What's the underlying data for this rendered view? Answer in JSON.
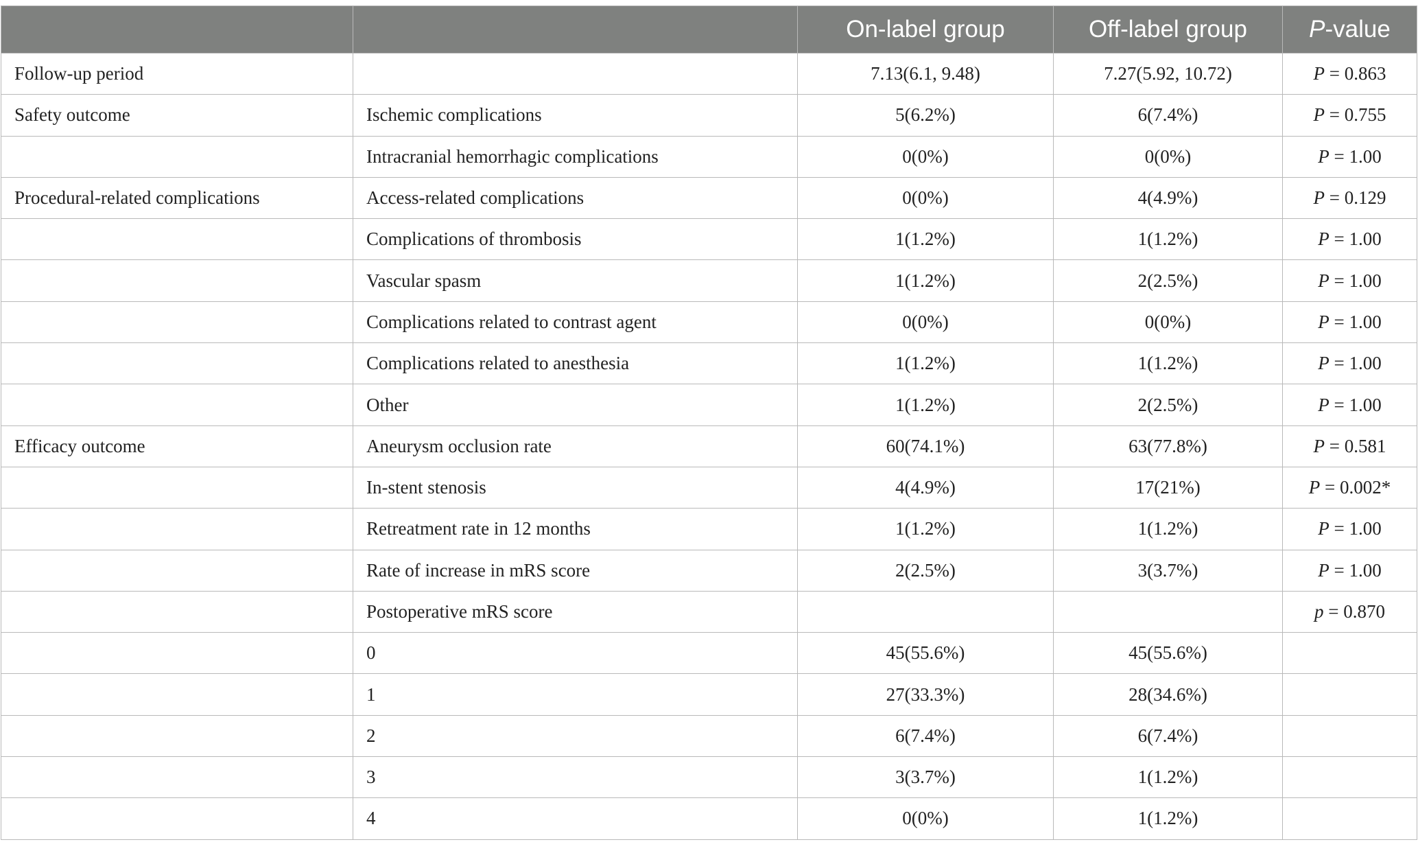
{
  "header": {
    "col0": "",
    "col1": "",
    "on_label": "On-label group",
    "off_label": "Off-label group",
    "p_italic": "P",
    "p_rest": "-value"
  },
  "rows": [
    {
      "outcome": "Follow-up period",
      "item": "",
      "on": "7.13(6.1, 9.48)",
      "off": "7.27(5.92, 10.72)",
      "p_sym": "P",
      "p_val": " = 0.863"
    },
    {
      "outcome": "Safety outcome",
      "item": "Ischemic complications",
      "on": "5(6.2%)",
      "off": "6(7.4%)",
      "p_sym": "P",
      "p_val": " = 0.755"
    },
    {
      "outcome": "",
      "item": "Intracranial hemorrhagic complications",
      "on": "0(0%)",
      "off": "0(0%)",
      "p_sym": "P",
      "p_val": " = 1.00"
    },
    {
      "outcome": "Procedural-related complications",
      "item": "Access-related complications",
      "on": "0(0%)",
      "off": "4(4.9%)",
      "p_sym": "P",
      "p_val": " = 0.129"
    },
    {
      "outcome": "",
      "item": "Complications of thrombosis",
      "on": "1(1.2%)",
      "off": "1(1.2%)",
      "p_sym": "P",
      "p_val": " = 1.00"
    },
    {
      "outcome": "",
      "item": "Vascular spasm",
      "on": "1(1.2%)",
      "off": "2(2.5%)",
      "p_sym": "P",
      "p_val": " = 1.00"
    },
    {
      "outcome": "",
      "item": "Complications related to contrast agent",
      "on": "0(0%)",
      "off": "0(0%)",
      "p_sym": "P",
      "p_val": " = 1.00"
    },
    {
      "outcome": "",
      "item": "Complications related to anesthesia",
      "on": "1(1.2%)",
      "off": "1(1.2%)",
      "p_sym": "P",
      "p_val": " = 1.00"
    },
    {
      "outcome": "",
      "item": "Other",
      "on": "1(1.2%)",
      "off": "2(2.5%)",
      "p_sym": "P",
      "p_val": " = 1.00"
    },
    {
      "outcome": "Efficacy outcome",
      "item": "Aneurysm occlusion rate",
      "on": "60(74.1%)",
      "off": "63(77.8%)",
      "p_sym": "P",
      "p_val": " = 0.581"
    },
    {
      "outcome": "",
      "item": "In-stent stenosis",
      "on": "4(4.9%)",
      "off": "17(21%)",
      "p_sym": "P",
      "p_val": " = 0.002*"
    },
    {
      "outcome": "",
      "item": "Retreatment rate in 12 months",
      "on": "1(1.2%)",
      "off": "1(1.2%)",
      "p_sym": "P",
      "p_val": " = 1.00"
    },
    {
      "outcome": "",
      "item": "Rate of increase in mRS score",
      "on": "2(2.5%)",
      "off": "3(3.7%)",
      "p_sym": "P",
      "p_val": " = 1.00"
    },
    {
      "outcome": "",
      "item": "Postoperative mRS score",
      "on": "",
      "off": "",
      "p_sym": "p",
      "p_val": " = 0.870"
    },
    {
      "outcome": "",
      "item": "0",
      "on": "45(55.6%)",
      "off": "45(55.6%)",
      "p_sym": "",
      "p_val": ""
    },
    {
      "outcome": "",
      "item": "1",
      "on": "27(33.3%)",
      "off": "28(34.6%)",
      "p_sym": "",
      "p_val": ""
    },
    {
      "outcome": "",
      "item": "2",
      "on": "6(7.4%)",
      "off": "6(7.4%)",
      "p_sym": "",
      "p_val": ""
    },
    {
      "outcome": "",
      "item": "3",
      "on": "3(3.7%)",
      "off": "1(1.2%)",
      "p_sym": "",
      "p_val": ""
    },
    {
      "outcome": "",
      "item": "4",
      "on": "0(0%)",
      "off": "1(1.2%)",
      "p_sym": "",
      "p_val": ""
    }
  ]
}
